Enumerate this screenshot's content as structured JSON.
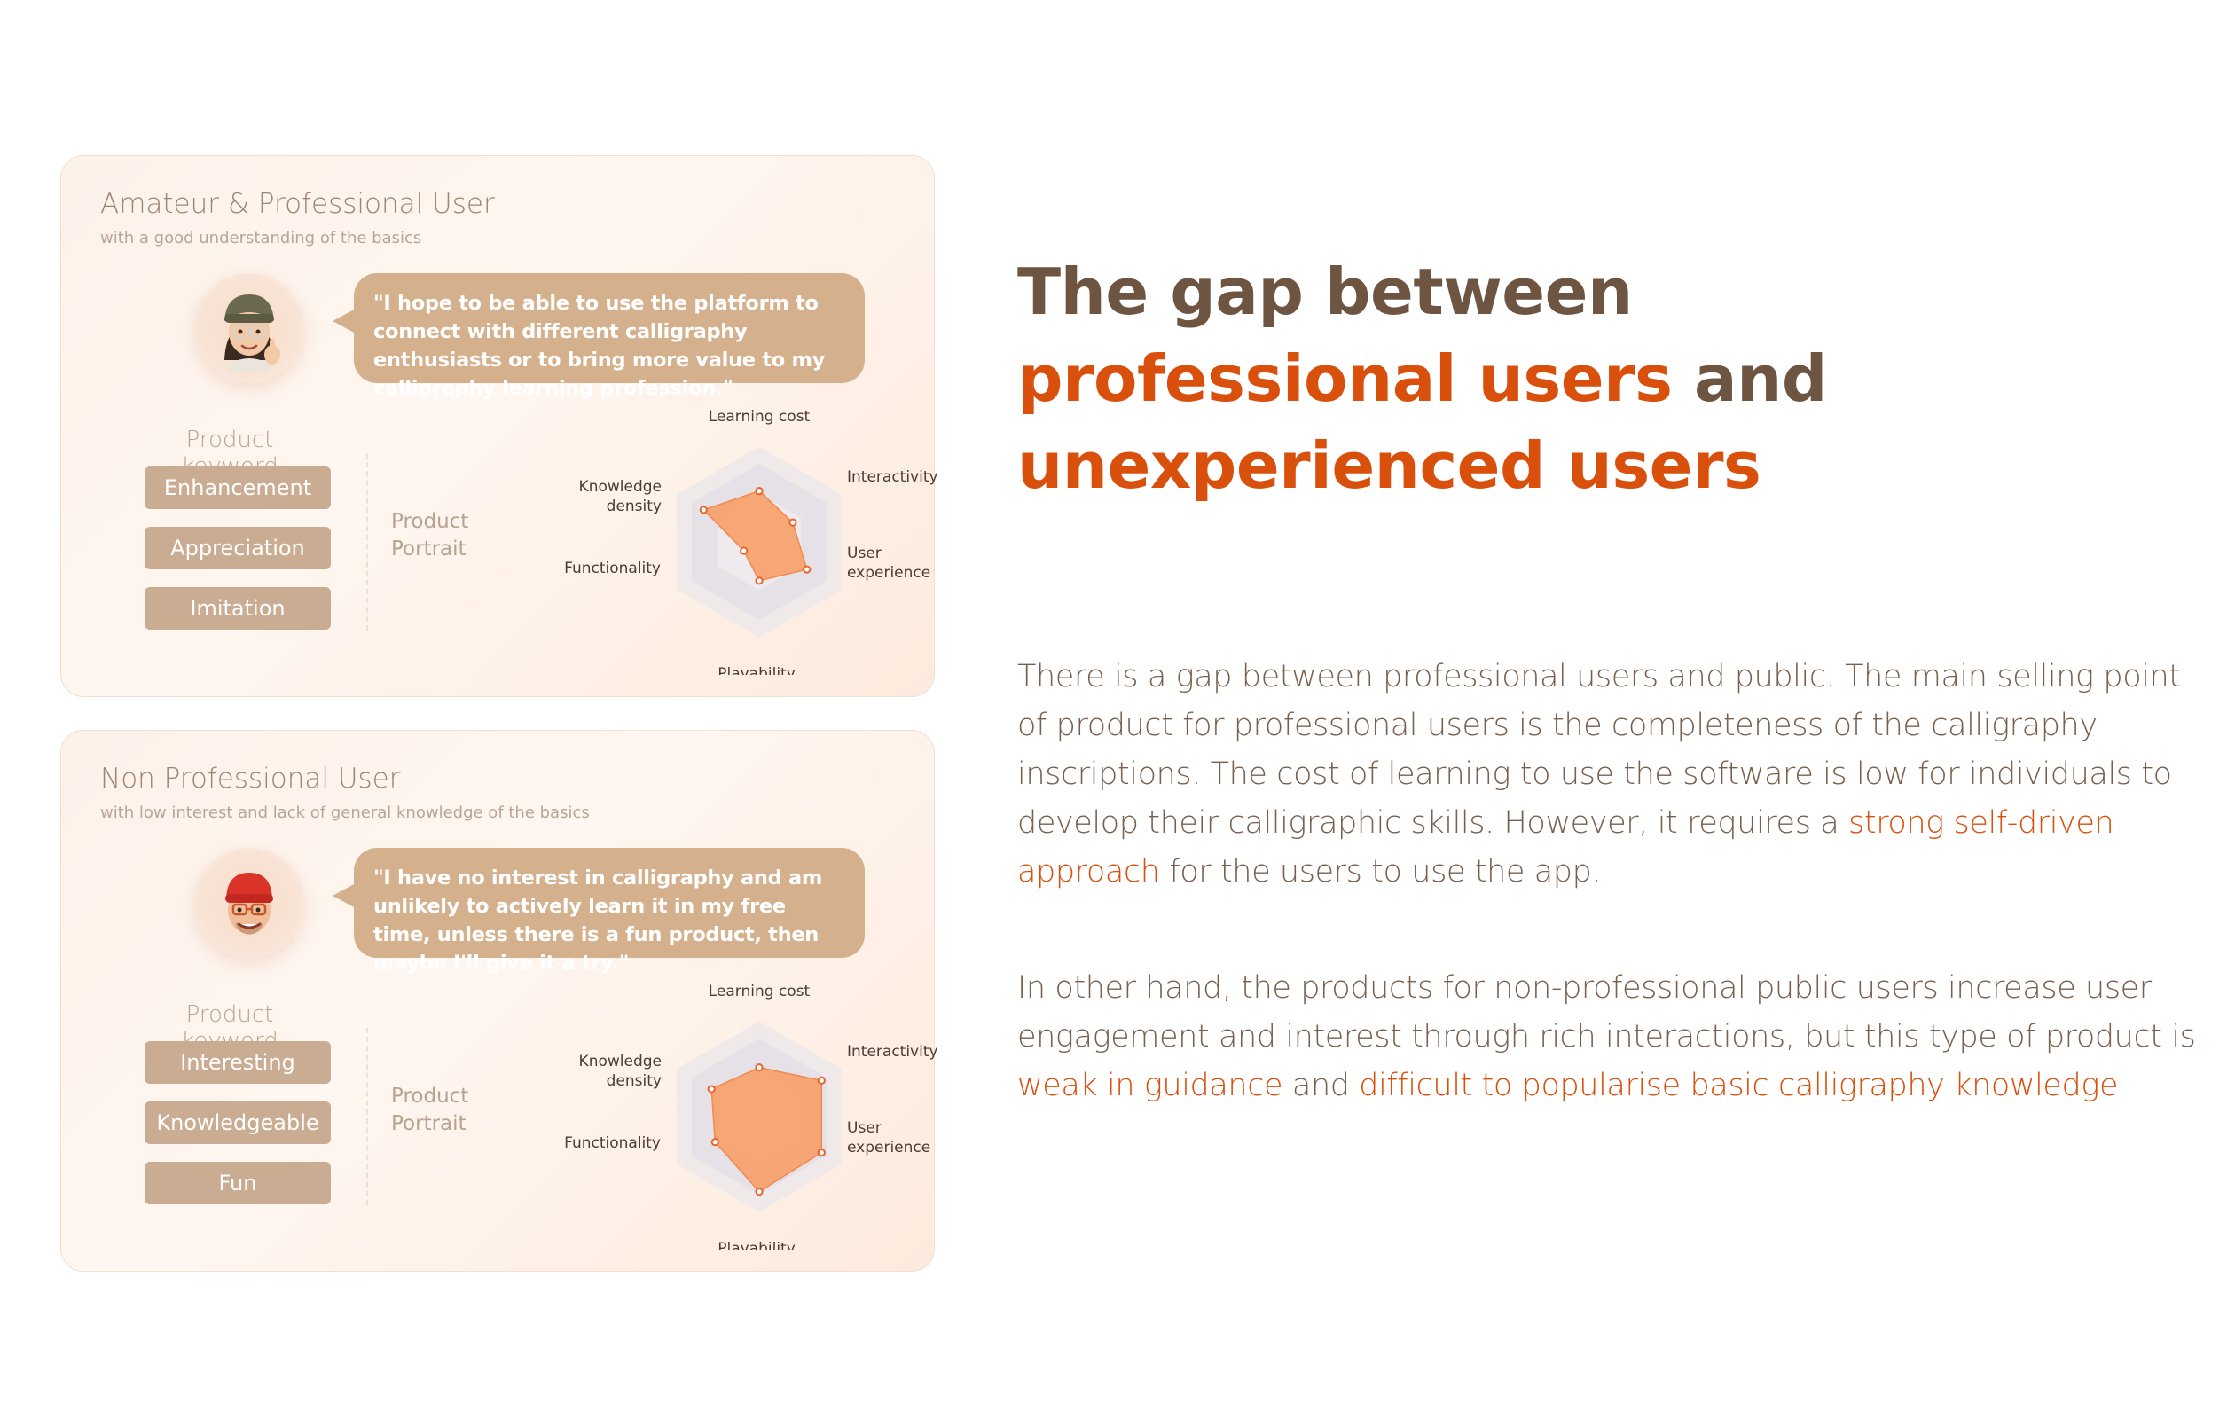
{
  "cards": [
    {
      "title": "Amateur & Professional User",
      "subtitle": "with a good understanding of the basics",
      "avatar": "memoji-woman-beanie-glasses-thumbsup",
      "quote": "\"I hope to be able to use the platform to connect with different calligraphy enthusiasts or to bring more value to my calligraphy learning profession.\"",
      "keyword_heading": "Product keyword",
      "keywords": [
        "Enhancement",
        "Appreciation",
        "Imitation"
      ],
      "portrait_label": [
        "Product",
        "Portrait"
      ],
      "radar": {
        "axes": [
          "Learning cost",
          "Interactivity",
          "User experience",
          "Playability",
          "Functionality",
          "Knowledge density"
        ],
        "values": [
          0.55,
          0.35,
          0.62,
          0.35,
          0.0,
          0.77
        ],
        "fill": "#f7a06a",
        "stroke": "#f08a4f"
      }
    },
    {
      "title": "Non Professional User",
      "subtitle": "with low interest and lack of general knowledge of the basics",
      "avatar": "memoji-man-red-beanie-glasses",
      "quote": "\"I have no interest in calligraphy and am unlikely to actively learn it in my free time, unless there is a fun product, then maybe I'll give it a try.\"",
      "keyword_heading": "Product keyword",
      "keywords": [
        "Interesting",
        "Knowledgeable",
        "Fun"
      ],
      "portrait_label": [
        "Product",
        "Portrait"
      ],
      "radar": {
        "axes": [
          "Learning cost",
          "Interactivity",
          "User experience",
          "Playability",
          "Functionality",
          "Knowledge density"
        ],
        "values": [
          0.52,
          0.9,
          0.9,
          0.95,
          0.55,
          0.62
        ],
        "fill": "#f7a06a",
        "stroke": "#f08a4f"
      }
    }
  ],
  "headline": {
    "line1": "The gap between",
    "line2_accent": "professional users",
    "line2_rest": " and",
    "line3_accent": "unexperienced users"
  },
  "paragraph1": {
    "text_a": "There is a gap between professional users and public. The main selling point of product for professional users is the completeness of the calligraphy inscriptions. The cost of learning to use the software is low for individuals to develop their calligraphic skills. However, it requires a ",
    "highlight": "strong self-driven approach",
    "text_b": " for the users to use the app."
  },
  "paragraph2": {
    "text_a": "In other hand, the products for non-professional public users increase user engagement and interest through rich interactions, but this type of product is ",
    "highlight_a": "weak in guidance",
    "text_b": " and ",
    "highlight_b": "difficult to popularise basic calligraphy knowledge"
  },
  "colors": {
    "brown_text": "#6e5542",
    "accent": "#d94f0c",
    "keyword_tag": "#c9ac91",
    "bubble": "#d4b08c"
  }
}
